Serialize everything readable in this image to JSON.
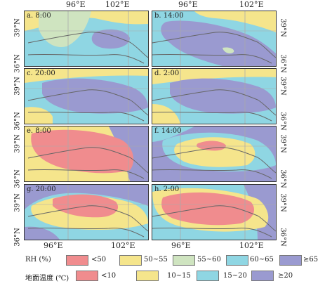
{
  "axes": {
    "top_lon": [
      "96°E",
      "102°E"
    ],
    "bottom_lon": [
      "96°E",
      "102°E"
    ],
    "lat": [
      "39°N",
      "36°N"
    ]
  },
  "panels": [
    {
      "label": "a. 8:00"
    },
    {
      "label": "b. 14:00"
    },
    {
      "label": "c. 20:00"
    },
    {
      "label": "d. 2:00"
    },
    {
      "label": "e. 8:00"
    },
    {
      "label": "f. 14:00"
    },
    {
      "label": "g. 20:00"
    },
    {
      "label": "h. 2:00"
    }
  ],
  "legend_rh": {
    "title": "RH (%)",
    "items": [
      {
        "label": "<50",
        "color": "#f08c8e"
      },
      {
        "label": "50~55",
        "color": "#f5e58c"
      },
      {
        "label": "55~60",
        "color": "#cfe4c0"
      },
      {
        "label": "60~65",
        "color": "#8fd6e3"
      },
      {
        "label": "≥65",
        "color": "#9a9ad0"
      }
    ]
  },
  "legend_temp": {
    "title": "地面温度 (℃)",
    "items": [
      {
        "label": "<10",
        "color": "#f08c8e"
      },
      {
        "label": "10~15",
        "color": "#f5e58c"
      },
      {
        "label": "15~20",
        "color": "#8fd6e3"
      },
      {
        "label": "≥20",
        "color": "#9a9ad0"
      }
    ]
  }
}
